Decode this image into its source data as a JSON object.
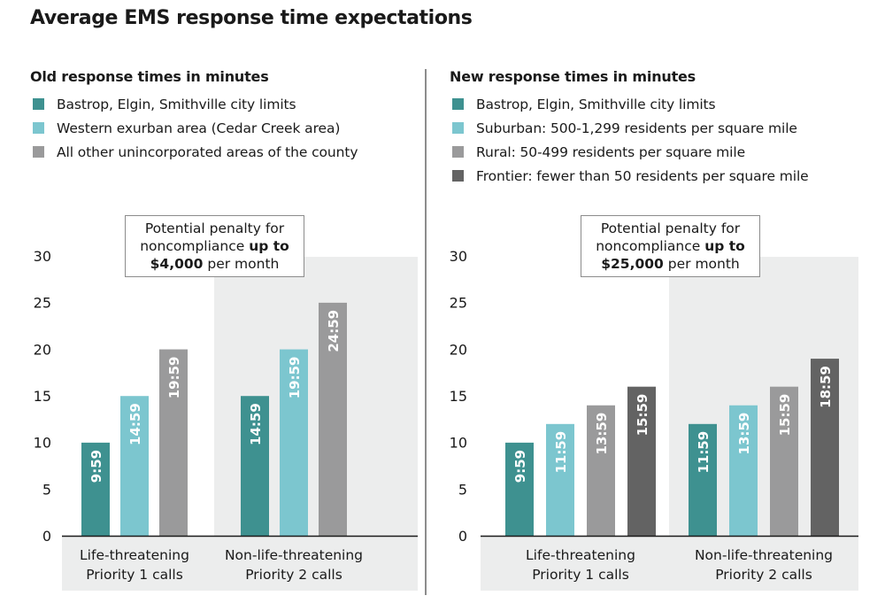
{
  "title": "Average EMS response time expectations",
  "colors": {
    "city": "#3e9190",
    "suburban": "#7cc6cf",
    "rural": "#9a9a9b",
    "frontier": "#636363",
    "shade": "#eceded",
    "axis": "#1a1a1a",
    "bar_label": "#ffffff"
  },
  "panels": {
    "old": {
      "subtitle": "Old response times in minutes",
      "legend": [
        {
          "label": "Bastrop, Elgin, Smithville city limits",
          "color": "#3e9190"
        },
        {
          "label": "Western exurban area (Cedar Creek area)",
          "color": "#7cc6cf"
        },
        {
          "label": "All other unincorporated areas of the county",
          "color": "#9a9a9b"
        }
      ],
      "callout": {
        "line1": "Potential penalty for",
        "line2_pre": "noncompliance ",
        "line2_bold": "up to",
        "line3_bold": "$4,000",
        "line3_post": " per month"
      }
    },
    "new": {
      "subtitle": "New response times in minutes",
      "legend": [
        {
          "label": "Bastrop, Elgin, Smithville city limits",
          "color": "#3e9190"
        },
        {
          "label": "Suburban: 500-1,299 residents per square mile",
          "color": "#7cc6cf"
        },
        {
          "label": "Rural: 50-499 residents per square mile",
          "color": "#9a9a9b"
        },
        {
          "label": "Frontier: fewer than 50 residents per square mile",
          "color": "#636363"
        }
      ],
      "callout": {
        "line1": "Potential penalty for",
        "line2_pre": "noncompliance ",
        "line2_bold": "up to",
        "line3_bold": "$25,000",
        "line3_post": " per month"
      }
    }
  },
  "chart_data": [
    {
      "type": "bar",
      "title": "Old response times in minutes",
      "categories": [
        [
          "Life-threatening",
          "Priority 1 calls"
        ],
        [
          "Non-life-threatening",
          "Priority 2 calls"
        ]
      ],
      "series": [
        {
          "name": "Bastrop, Elgin, Smithville city limits",
          "values": [
            9.98,
            14.98
          ],
          "labels": [
            "9:59",
            "14:59"
          ],
          "color": "#3e9190"
        },
        {
          "name": "Western exurban area (Cedar Creek area)",
          "values": [
            14.98,
            19.98
          ],
          "labels": [
            "14:59",
            "19:59"
          ],
          "color": "#7cc6cf"
        },
        {
          "name": "All other unincorporated areas of the county",
          "values": [
            19.98,
            24.98
          ],
          "labels": [
            "19:59",
            "24:59"
          ],
          "color": "#9a9a9b"
        }
      ],
      "yticks": [
        0,
        5,
        10,
        15,
        20,
        25,
        30
      ],
      "ylim": [
        0,
        30
      ],
      "xlabel": "",
      "ylabel": ""
    },
    {
      "type": "bar",
      "title": "New response times in minutes",
      "categories": [
        [
          "Life-threatening",
          "Priority 1 calls"
        ],
        [
          "Non-life-threatening",
          "Priority 2 calls"
        ]
      ],
      "series": [
        {
          "name": "Bastrop, Elgin, Smithville city limits",
          "values": [
            9.98,
            11.98
          ],
          "labels": [
            "9:59",
            "11:59"
          ],
          "color": "#3e9190"
        },
        {
          "name": "Suburban: 500-1,299 residents per square mile",
          "values": [
            11.98,
            13.98
          ],
          "labels": [
            "11:59",
            "13:59"
          ],
          "color": "#7cc6cf"
        },
        {
          "name": "Rural: 50-499 residents per square mile",
          "values": [
            13.98,
            15.98
          ],
          "labels": [
            "13:59",
            "15:59"
          ],
          "color": "#9a9a9b"
        },
        {
          "name": "Frontier: fewer than 50 residents per square mile",
          "values": [
            15.98,
            18.98
          ],
          "labels": [
            "15:59",
            "18:59"
          ],
          "color": "#636363"
        }
      ],
      "yticks": [
        0,
        5,
        10,
        15,
        20,
        25,
        30
      ],
      "ylim": [
        0,
        30
      ],
      "xlabel": "",
      "ylabel": ""
    }
  ]
}
